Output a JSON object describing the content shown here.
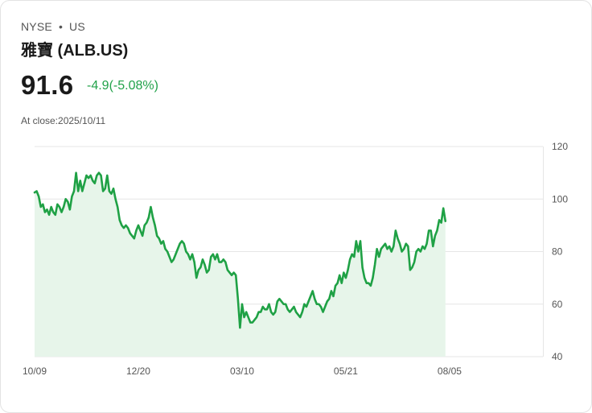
{
  "header": {
    "exchange": "NYSE",
    "separator": "•",
    "region": "US",
    "name": "雅寶 (ALB.US)",
    "price": "91.6",
    "change": "-4.9(-5.08%)",
    "close_time": "At close:2025/10/11"
  },
  "colors": {
    "line": "#1fa145",
    "fill": "#e7f5ea",
    "grid": "#e6e6e6"
  },
  "chart_data": {
    "type": "area",
    "title": "",
    "xlabel": "",
    "ylabel": "",
    "ylim": [
      40,
      120
    ],
    "yticks": [
      120,
      100,
      80,
      60,
      40
    ],
    "x_range": [
      0,
      245
    ],
    "x_ticks": [
      {
        "label": "10/09",
        "x": 0
      },
      {
        "label": "12/20",
        "x": 50
      },
      {
        "label": "03/10",
        "x": 100
      },
      {
        "label": "05/21",
        "x": 150
      },
      {
        "label": "08/05",
        "x": 200
      }
    ],
    "series": [
      {
        "name": "ALB.US",
        "points": [
          [
            0,
            102.5
          ],
          [
            1,
            103
          ],
          [
            2,
            101
          ],
          [
            3,
            97
          ],
          [
            4,
            98
          ],
          [
            5,
            95
          ],
          [
            6,
            96
          ],
          [
            7,
            94
          ],
          [
            8,
            97
          ],
          [
            9,
            95
          ],
          [
            10,
            94
          ],
          [
            11,
            98
          ],
          [
            12,
            97
          ],
          [
            13,
            95
          ],
          [
            14,
            97
          ],
          [
            15,
            100
          ],
          [
            16,
            99
          ],
          [
            17,
            96
          ],
          [
            18,
            101
          ],
          [
            19,
            103
          ],
          [
            20,
            110
          ],
          [
            21,
            103
          ],
          [
            22,
            107
          ],
          [
            23,
            103
          ],
          [
            24,
            106
          ],
          [
            25,
            109
          ],
          [
            26,
            108
          ],
          [
            27,
            109
          ],
          [
            28,
            107
          ],
          [
            29,
            106
          ],
          [
            30,
            109
          ],
          [
            31,
            110
          ],
          [
            32,
            109
          ],
          [
            33,
            103
          ],
          [
            34,
            104
          ],
          [
            35,
            109
          ],
          [
            36,
            103
          ],
          [
            37,
            102
          ],
          [
            38,
            104
          ],
          [
            39,
            100
          ],
          [
            40,
            97
          ],
          [
            41,
            92
          ],
          [
            42,
            90
          ],
          [
            43,
            89
          ],
          [
            44,
            90
          ],
          [
            45,
            89
          ],
          [
            46,
            87
          ],
          [
            47,
            86
          ],
          [
            48,
            85
          ],
          [
            49,
            88
          ],
          [
            50,
            90
          ],
          [
            51,
            88
          ],
          [
            52,
            86
          ],
          [
            53,
            90
          ],
          [
            54,
            91
          ],
          [
            55,
            93
          ],
          [
            56,
            97
          ],
          [
            57,
            93
          ],
          [
            58,
            90
          ],
          [
            59,
            86
          ],
          [
            60,
            85
          ],
          [
            61,
            83
          ],
          [
            62,
            84
          ],
          [
            63,
            81
          ],
          [
            64,
            80
          ],
          [
            65,
            78
          ],
          [
            66,
            76
          ],
          [
            67,
            77
          ],
          [
            68,
            79
          ],
          [
            69,
            81
          ],
          [
            70,
            83
          ],
          [
            71,
            84
          ],
          [
            72,
            83
          ],
          [
            73,
            80
          ],
          [
            74,
            79
          ],
          [
            75,
            77
          ],
          [
            76,
            79
          ],
          [
            77,
            76
          ],
          [
            78,
            70
          ],
          [
            79,
            73
          ],
          [
            80,
            74
          ],
          [
            81,
            77
          ],
          [
            82,
            75
          ],
          [
            83,
            72
          ],
          [
            84,
            73
          ],
          [
            85,
            78
          ],
          [
            86,
            79
          ],
          [
            87,
            77
          ],
          [
            88,
            79
          ],
          [
            89,
            76
          ],
          [
            90,
            76
          ],
          [
            91,
            77
          ],
          [
            92,
            76
          ],
          [
            93,
            73
          ],
          [
            94,
            72
          ],
          [
            95,
            71
          ],
          [
            96,
            72
          ],
          [
            97,
            71
          ],
          [
            98,
            62
          ],
          [
            99,
            51
          ],
          [
            100,
            60
          ],
          [
            101,
            55
          ],
          [
            102,
            57
          ],
          [
            103,
            55
          ],
          [
            104,
            53
          ],
          [
            105,
            53
          ],
          [
            106,
            54
          ],
          [
            107,
            55
          ],
          [
            108,
            57
          ],
          [
            109,
            57
          ],
          [
            110,
            59
          ],
          [
            111,
            58
          ],
          [
            112,
            58
          ],
          [
            113,
            60
          ],
          [
            114,
            57
          ],
          [
            115,
            56
          ],
          [
            116,
            57
          ],
          [
            117,
            61
          ],
          [
            118,
            62
          ],
          [
            119,
            61
          ],
          [
            120,
            60
          ],
          [
            121,
            60
          ],
          [
            122,
            58
          ],
          [
            123,
            57
          ],
          [
            124,
            58
          ],
          [
            125,
            59
          ],
          [
            126,
            57
          ],
          [
            127,
            56
          ],
          [
            128,
            55
          ],
          [
            129,
            57
          ],
          [
            130,
            60
          ],
          [
            131,
            59
          ],
          [
            132,
            61
          ],
          [
            133,
            63
          ],
          [
            134,
            65
          ],
          [
            135,
            62
          ],
          [
            136,
            60
          ],
          [
            137,
            60
          ],
          [
            138,
            59
          ],
          [
            139,
            57
          ],
          [
            140,
            59
          ],
          [
            141,
            61
          ],
          [
            142,
            62
          ],
          [
            143,
            65
          ],
          [
            144,
            63
          ],
          [
            145,
            67
          ],
          [
            146,
            68
          ],
          [
            147,
            71
          ],
          [
            148,
            68
          ],
          [
            149,
            72
          ],
          [
            150,
            70
          ],
          [
            151,
            73
          ],
          [
            152,
            77
          ],
          [
            153,
            79
          ],
          [
            154,
            78
          ],
          [
            155,
            84
          ],
          [
            156,
            80
          ],
          [
            157,
            84
          ],
          [
            158,
            74
          ],
          [
            159,
            70
          ],
          [
            160,
            68
          ],
          [
            161,
            68
          ],
          [
            162,
            67
          ],
          [
            163,
            70
          ],
          [
            164,
            75
          ],
          [
            165,
            81
          ],
          [
            166,
            78
          ],
          [
            167,
            81
          ],
          [
            168,
            82
          ],
          [
            169,
            83
          ],
          [
            170,
            81
          ],
          [
            171,
            82
          ],
          [
            172,
            80
          ],
          [
            173,
            82
          ],
          [
            174,
            88
          ],
          [
            175,
            85
          ],
          [
            176,
            83
          ],
          [
            177,
            80
          ],
          [
            178,
            81
          ],
          [
            179,
            83
          ],
          [
            180,
            82
          ],
          [
            181,
            73
          ],
          [
            182,
            74
          ],
          [
            183,
            76
          ],
          [
            184,
            80
          ],
          [
            185,
            81
          ],
          [
            186,
            80
          ],
          [
            187,
            82
          ],
          [
            188,
            81
          ],
          [
            189,
            83
          ],
          [
            190,
            88
          ],
          [
            191,
            88
          ],
          [
            192,
            82
          ],
          [
            193,
            86
          ],
          [
            194,
            88
          ],
          [
            195,
            92
          ],
          [
            196,
            91
          ],
          [
            197,
            96.5
          ],
          [
            198,
            91.6
          ]
        ]
      }
    ]
  }
}
